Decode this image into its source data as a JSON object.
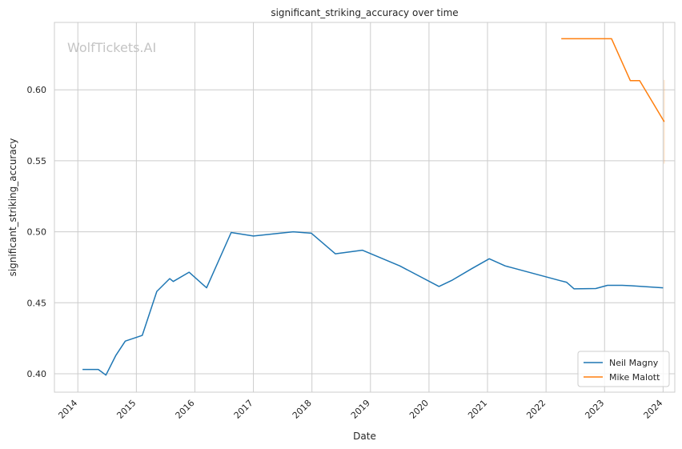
{
  "chart_data": {
    "type": "line",
    "title": "significant_striking_accuracy over time",
    "xlabel": "Date",
    "ylabel": "significant_striking_accuracy",
    "watermark": "WolfTickets.AI",
    "xlim": [
      2013.6,
      2024.2
    ],
    "ylim": [
      0.387,
      0.6475
    ],
    "x_ticks": [
      2014,
      2015,
      2016,
      2017,
      2018,
      2019,
      2020,
      2021,
      2022,
      2023,
      2024
    ],
    "x_tick_labels": [
      "2014",
      "2015",
      "2016",
      "2017",
      "2018",
      "2019",
      "2020",
      "2021",
      "2022",
      "2023",
      "2024"
    ],
    "y_ticks": [
      0.4,
      0.45,
      0.5,
      0.55,
      0.6
    ],
    "y_tick_labels": [
      "0.40",
      "0.45",
      "0.50",
      "0.55",
      "0.60"
    ],
    "grid": true,
    "legend_position": "bottom-right",
    "series": [
      {
        "name": "Neil Magny",
        "color": "#1f77b4",
        "x": [
          2014.08,
          2014.35,
          2014.48,
          2014.65,
          2014.81,
          2015.1,
          2015.35,
          2015.57,
          2015.63,
          2015.9,
          2016.2,
          2016.62,
          2017.0,
          2017.68,
          2017.99,
          2018.4,
          2018.86,
          2019.5,
          2020.17,
          2020.4,
          2020.73,
          2021.03,
          2021.3,
          2022.25,
          2022.35,
          2022.48,
          2022.85,
          2023.05,
          2023.3,
          2023.45,
          2024.0
        ],
        "y": [
          0.403,
          0.403,
          0.399,
          0.413,
          0.423,
          0.427,
          0.458,
          0.467,
          0.465,
          0.4715,
          0.4605,
          0.4995,
          0.497,
          0.5,
          0.499,
          0.4845,
          0.487,
          0.476,
          0.4615,
          0.466,
          0.474,
          0.481,
          0.476,
          0.4655,
          0.4645,
          0.4598,
          0.46,
          0.4623,
          0.4623,
          0.462,
          0.4605
        ]
      },
      {
        "name": "Mike Malott",
        "color": "#ff7f0e",
        "x": [
          2022.26,
          2023.12,
          2023.44,
          2023.6,
          2024.02
        ],
        "y": [
          0.636,
          0.636,
          0.6065,
          0.6065,
          0.5775
        ],
        "error_bar": {
          "x": 2024.02,
          "low": 0.548,
          "high": 0.607
        }
      }
    ]
  }
}
